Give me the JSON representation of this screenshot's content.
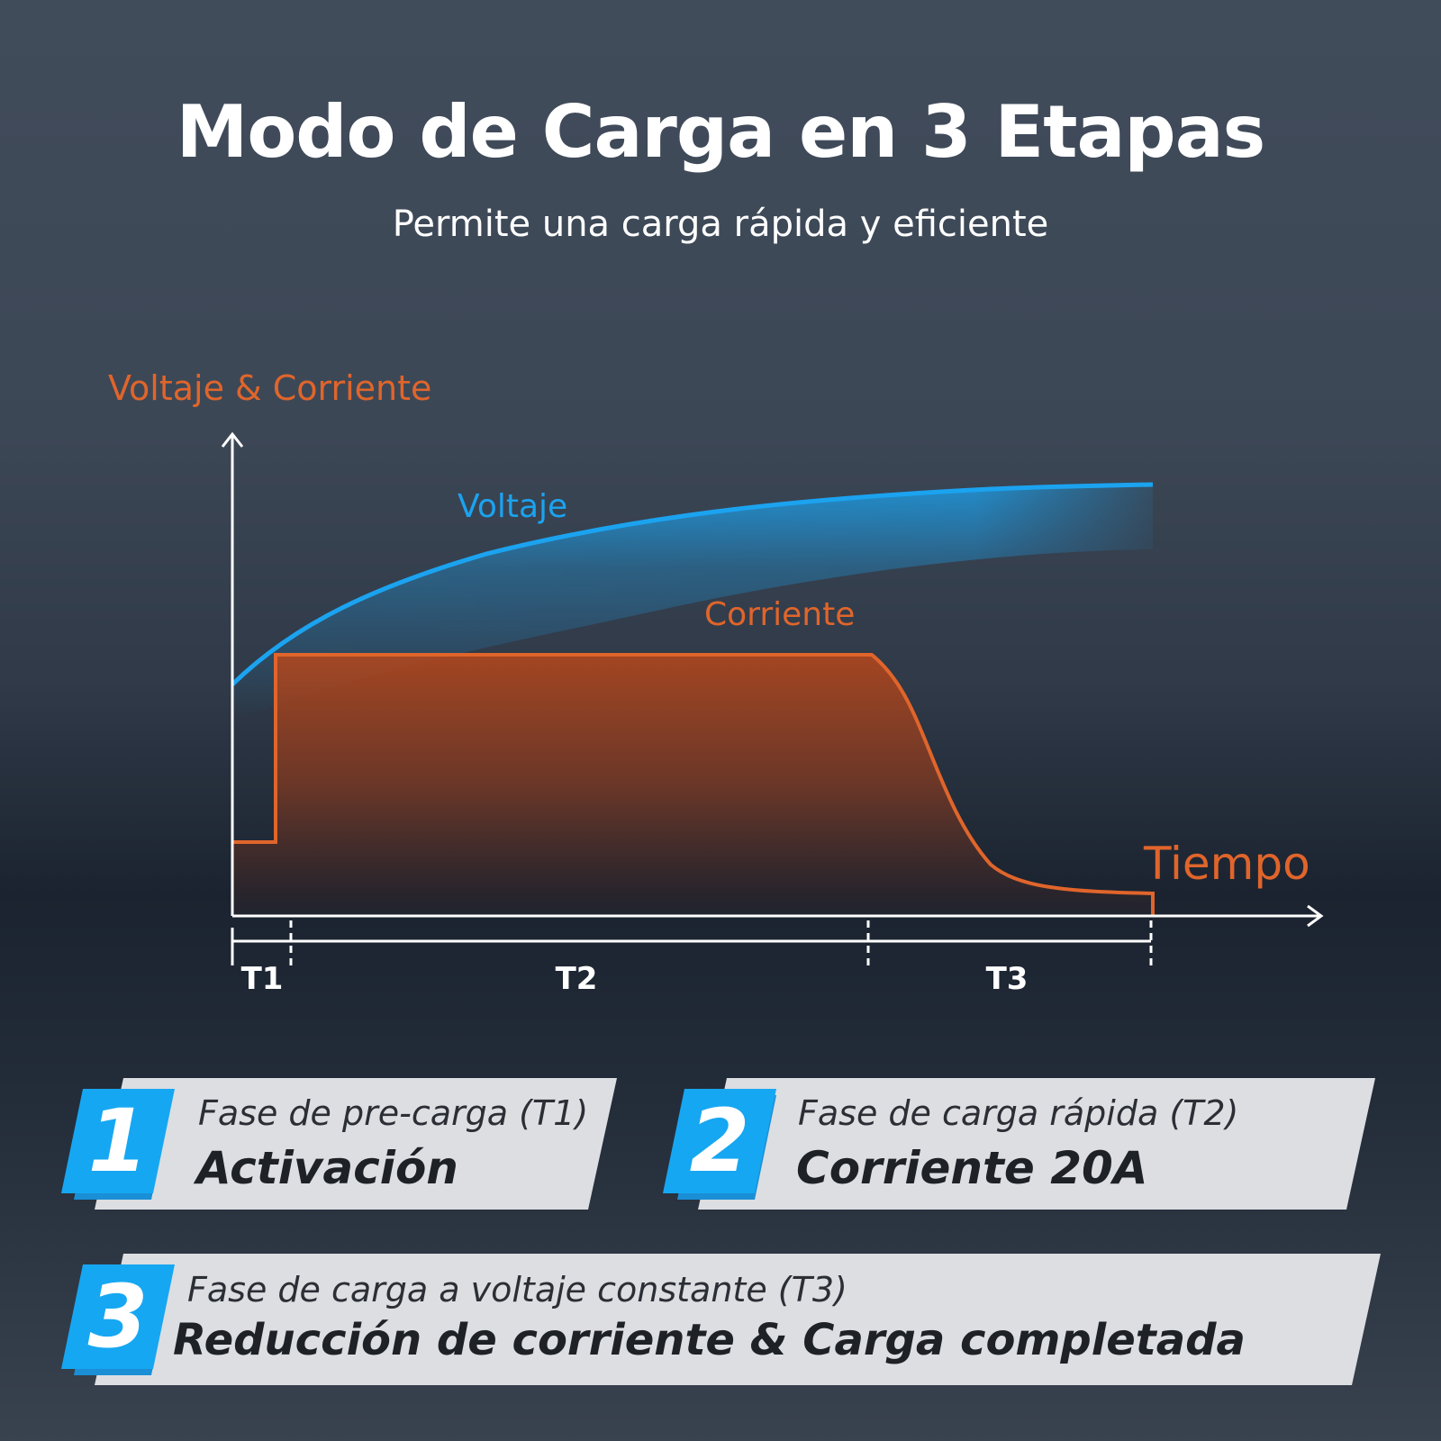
{
  "header": {
    "title": "Modo de Carga en 3 Etapas",
    "subtitle": "Permite una carga rápida y eficiente"
  },
  "diagram": {
    "y_axis_label": "Voltaje & Corriente",
    "x_axis_label": "Tiempo",
    "voltage_label": "Voltaje",
    "current_label": "Corriente",
    "phases": [
      "T1",
      "T2",
      "T3"
    ],
    "colors": {
      "voltage": "#1ba3f0",
      "current": "#e0652b",
      "axis": "#ffffff",
      "badge": "#16a7f2"
    }
  },
  "cards": [
    {
      "number": "1",
      "subtitle": "Fase de pre-carga (T1)",
      "title": "Activación"
    },
    {
      "number": "2",
      "subtitle": "Fase de carga rápida (T2)",
      "title": "Corriente 20A"
    },
    {
      "number": "3",
      "subtitle": "Fase de carga a voltaje constante (T3)",
      "title": "Reducción de corriente & Carga completada"
    }
  ]
}
